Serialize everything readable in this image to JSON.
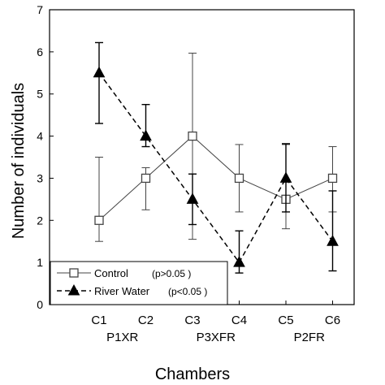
{
  "chart_data": {
    "type": "line",
    "xlabel": "Chambers",
    "ylabel": "Number of individuals",
    "ylim": [
      0,
      7
    ],
    "categories": [
      "C1",
      "C2",
      "C3",
      "C4",
      "C5",
      "C6"
    ],
    "group_labels": [
      {
        "label": "P1XR",
        "between": [
          "C1",
          "C2"
        ]
      },
      {
        "label": "P3XFR",
        "between": [
          "C3",
          "C4"
        ]
      },
      {
        "label": "P2FR",
        "between": [
          "C5",
          "C6"
        ]
      }
    ],
    "series": [
      {
        "name": "Control",
        "stat": "(p>0.05 )",
        "marker": "open-square",
        "line_style": "solid",
        "color": "#444444",
        "values": [
          2.0,
          3.0,
          4.0,
          3.0,
          2.5,
          3.0
        ],
        "error_upper": [
          3.5,
          3.25,
          5.97,
          3.8,
          3.8,
          3.75
        ],
        "error_lower": [
          1.5,
          2.25,
          1.55,
          2.2,
          1.8,
          2.2
        ]
      },
      {
        "name": "River Water",
        "stat": "(p<0.05 )",
        "marker": "filled-triangle",
        "line_style": "dashed",
        "color": "#000000",
        "values": [
          5.5,
          4.0,
          2.5,
          1.0,
          3.0,
          1.5
        ],
        "error_upper": [
          6.22,
          4.75,
          3.1,
          1.75,
          3.82,
          2.7
        ],
        "error_lower": [
          4.3,
          3.75,
          1.9,
          0.75,
          2.2,
          0.8
        ]
      }
    ],
    "legend_position": "bottom-left",
    "grid": false
  }
}
